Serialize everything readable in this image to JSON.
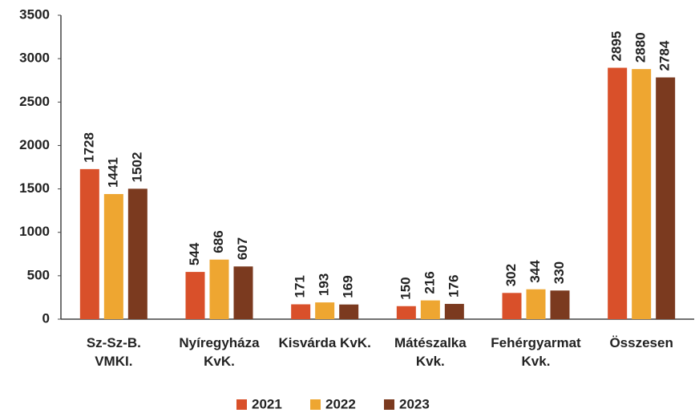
{
  "chart_data": {
    "type": "bar",
    "categories": [
      "Sz-Sz-B.\nVMKI.",
      "Nyíregyháza\nKvK.",
      "Kisvárda KvK.",
      "Mátészalka\nKvk.",
      "Fehérgyarmat\nKvk.",
      "Összesen"
    ],
    "series": [
      {
        "name": "2021",
        "color": "#d9502a",
        "values": [
          1728,
          544,
          171,
          150,
          302,
          2895
        ]
      },
      {
        "name": "2022",
        "color": "#eea631",
        "values": [
          1441,
          686,
          193,
          216,
          344,
          2880
        ]
      },
      {
        "name": "2023",
        "color": "#7b3a1f",
        "values": [
          1502,
          607,
          169,
          176,
          330,
          2784
        ]
      }
    ],
    "ylim": [
      0,
      3500
    ],
    "yticks": [
      0,
      500,
      1000,
      1500,
      2000,
      2500,
      3000,
      3500
    ],
    "legend": "bottom"
  }
}
